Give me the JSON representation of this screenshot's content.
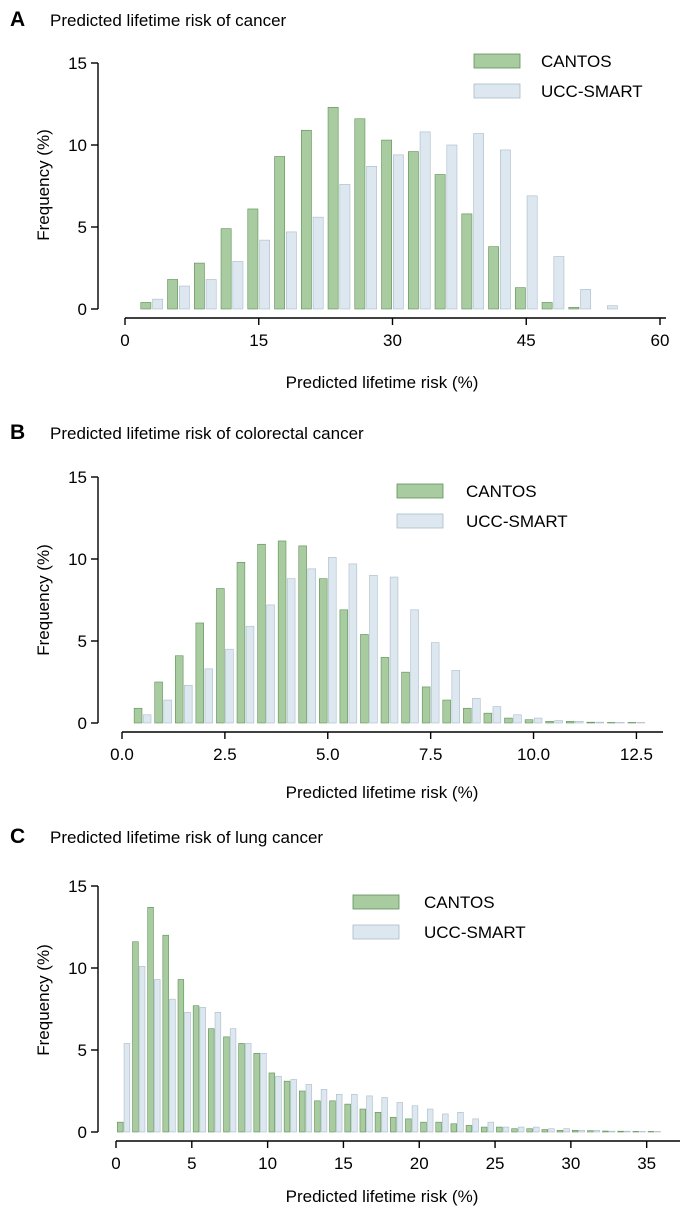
{
  "colors": {
    "cantos": "#a8cca0",
    "cantos_stroke": "#5e8f58",
    "ucc": "#dde7ef",
    "ucc_stroke": "#a9bccb"
  },
  "chart_data": [
    {
      "type": "bar",
      "panel": "A",
      "title": "Predicted lifetime risk of cancer",
      "xlabel": "Predicted lifetime risk (%)",
      "ylabel": "Frequency (%)",
      "xlim": [
        0,
        60
      ],
      "ylim": [
        0,
        15
      ],
      "xticks": [
        0,
        15,
        30,
        45,
        60
      ],
      "yticks": [
        0,
        5,
        10,
        15
      ],
      "bin_width": 3,
      "legend_position": "top-right",
      "x": [
        3,
        6,
        9,
        12,
        15,
        18,
        21,
        24,
        27,
        30,
        33,
        36,
        39,
        42,
        45,
        48,
        51,
        54,
        57
      ],
      "series": [
        {
          "name": "CANTOS",
          "values": [
            0.4,
            1.8,
            2.8,
            4.9,
            6.1,
            9.3,
            10.9,
            12.3,
            11.6,
            10.3,
            9.6,
            8.2,
            5.8,
            3.8,
            1.3,
            0.4,
            0.1,
            0,
            0
          ]
        },
        {
          "name": "UCC-SMART",
          "values": [
            0.6,
            1.4,
            1.8,
            2.9,
            4.2,
            4.7,
            5.6,
            7.6,
            8.7,
            9.4,
            10.8,
            10.0,
            10.7,
            9.7,
            6.9,
            3.2,
            1.2,
            0.2,
            0
          ]
        }
      ]
    },
    {
      "type": "bar",
      "panel": "B",
      "title": "Predicted lifetime risk of colorectal cancer",
      "xlabel": "Predicted lifetime risk (%)",
      "ylabel": "Frequency (%)",
      "xlim": [
        0,
        13
      ],
      "ylim": [
        0,
        15
      ],
      "xticks": [
        0.0,
        2.5,
        5.0,
        7.5,
        10.0,
        12.5
      ],
      "xtick_labels": [
        "0.0",
        "2.5",
        "5.0",
        "7.5",
        "10.0",
        "12.5"
      ],
      "yticks": [
        0,
        5,
        10,
        15
      ],
      "bin_width": 0.5,
      "legend_position": "top-right",
      "x": [
        0.5,
        1.0,
        1.5,
        2.0,
        2.5,
        3.0,
        3.5,
        4.0,
        4.5,
        5.0,
        5.5,
        6.0,
        6.5,
        7.0,
        7.5,
        8.0,
        8.5,
        9.0,
        9.5,
        10.0,
        10.5,
        11.0,
        11.5,
        12.0,
        12.5
      ],
      "series": [
        {
          "name": "CANTOS",
          "values": [
            0.9,
            2.5,
            4.1,
            6.1,
            8.2,
            9.8,
            10.9,
            11.1,
            10.8,
            8.8,
            6.9,
            5.4,
            4.0,
            3.1,
            2.2,
            1.4,
            0.9,
            0.6,
            0.3,
            0.2,
            0.1,
            0.1,
            0.05,
            0.03,
            0.02
          ]
        },
        {
          "name": "UCC-SMART",
          "values": [
            0.5,
            1.4,
            2.3,
            3.3,
            4.5,
            5.9,
            7.2,
            8.8,
            9.4,
            10.1,
            9.7,
            9.0,
            8.9,
            6.9,
            4.9,
            3.2,
            1.5,
            1.0,
            0.5,
            0.3,
            0.15,
            0.1,
            0.05,
            0.03,
            0.01
          ]
        }
      ]
    },
    {
      "type": "bar",
      "panel": "C",
      "title": "Predicted lifetime risk of lung cancer",
      "xlabel": "Predicted lifetime risk (%)",
      "ylabel": "Frequency (%)",
      "xlim": [
        0,
        37
      ],
      "ylim": [
        0,
        15
      ],
      "xticks": [
        0,
        5,
        10,
        15,
        20,
        25,
        30,
        35
      ],
      "yticks": [
        0,
        5,
        10,
        15
      ],
      "bin_width": 1,
      "legend_position": "top-right",
      "x": [
        0.5,
        1.5,
        2.5,
        3.5,
        4.5,
        5.5,
        6.5,
        7.5,
        8.5,
        9.5,
        10.5,
        11.5,
        12.5,
        13.5,
        14.5,
        15.5,
        16.5,
        17.5,
        18.5,
        19.5,
        20.5,
        21.5,
        22.5,
        23.5,
        24.5,
        25.5,
        26.5,
        27.5,
        28.5,
        29.5,
        30.5,
        31.5,
        32.5,
        33.5,
        34.5,
        35.5
      ],
      "series": [
        {
          "name": "CANTOS",
          "values": [
            0.6,
            11.6,
            13.7,
            12.0,
            9.3,
            7.7,
            6.3,
            5.8,
            5.4,
            4.8,
            3.6,
            3.1,
            2.5,
            1.9,
            1.9,
            1.7,
            1.4,
            1.2,
            0.9,
            0.8,
            0.6,
            0.6,
            0.5,
            0.4,
            0.3,
            0.3,
            0.2,
            0.2,
            0.15,
            0.1,
            0.1,
            0.08,
            0.06,
            0.05,
            0.03,
            0.02
          ]
        },
        {
          "name": "UCC-SMART",
          "values": [
            5.4,
            10.1,
            9.3,
            8.1,
            7.3,
            7.6,
            7.3,
            6.3,
            5.4,
            4.8,
            3.4,
            3.2,
            2.9,
            2.6,
            2.3,
            2.3,
            2.2,
            2.1,
            1.8,
            1.6,
            1.4,
            1.1,
            1.2,
            0.8,
            0.6,
            0.3,
            0.3,
            0.3,
            0.2,
            0.2,
            0.1,
            0.1,
            0.05,
            0.05,
            0.03,
            0.02
          ]
        }
      ]
    }
  ]
}
